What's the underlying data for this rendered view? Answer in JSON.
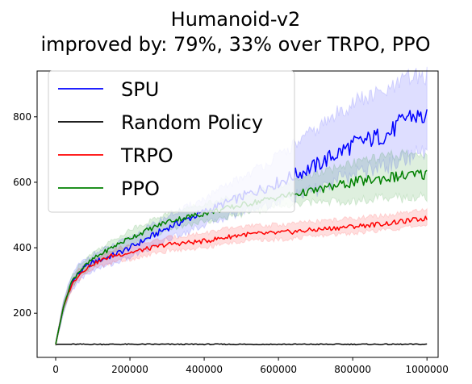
{
  "chart_data": {
    "type": "line",
    "title_lines": [
      "Humanoid-v2",
      "improved by: 79%, 33% over TRPO, PPO"
    ],
    "xlabel": "",
    "ylabel": "",
    "xlim": [
      -50000,
      1030000
    ],
    "ylim": [
      65,
      940
    ],
    "xticks": [
      0,
      200000,
      400000,
      600000,
      800000,
      1000000
    ],
    "xtick_labels": [
      "0",
      "200000",
      "400000",
      "600000",
      "800000",
      "1000000"
    ],
    "yticks": [
      200,
      400,
      600,
      800
    ],
    "ytick_labels": [
      "200",
      "400",
      "600",
      "800"
    ],
    "grid": false,
    "legend_position": "upper-left",
    "series": [
      {
        "name": "SPU",
        "color": "#0000ff",
        "x": [
          0,
          20000,
          40000,
          60000,
          80000,
          100000,
          150000,
          200000,
          300000,
          400000,
          500000,
          600000,
          700000,
          800000,
          900000,
          950000,
          1000000
        ],
        "y": [
          105,
          215,
          285,
          320,
          340,
          355,
          375,
          400,
          460,
          510,
          555,
          600,
          650,
          715,
          750,
          805,
          795
        ],
        "upper": [
          110,
          235,
          305,
          345,
          365,
          380,
          405,
          430,
          495,
          550,
          615,
          680,
          760,
          845,
          880,
          920,
          925
        ],
        "lower": [
          100,
          195,
          265,
          295,
          315,
          330,
          350,
          370,
          425,
          470,
          510,
          540,
          575,
          625,
          655,
          680,
          690
        ]
      },
      {
        "name": "Random Policy",
        "color": "#000000",
        "x": [
          0,
          100000,
          200000,
          300000,
          400000,
          500000,
          600000,
          700000,
          800000,
          900000,
          1000000
        ],
        "y": [
          105,
          105,
          105,
          105,
          105,
          105,
          105,
          105,
          105,
          105,
          105
        ]
      },
      {
        "name": "TRPO",
        "color": "#ff0000",
        "x": [
          0,
          20000,
          40000,
          60000,
          80000,
          100000,
          150000,
          200000,
          300000,
          400000,
          500000,
          600000,
          700000,
          800000,
          900000,
          1000000
        ],
        "y": [
          105,
          215,
          280,
          315,
          335,
          350,
          375,
          385,
          410,
          420,
          440,
          445,
          455,
          465,
          475,
          490
        ],
        "upper": [
          110,
          225,
          295,
          330,
          350,
          365,
          395,
          405,
          430,
          445,
          465,
          470,
          480,
          490,
          500,
          515
        ],
        "lower": [
          100,
          205,
          265,
          300,
          320,
          335,
          355,
          365,
          390,
          400,
          420,
          425,
          435,
          445,
          455,
          470
        ]
      },
      {
        "name": "PPO",
        "color": "#008000",
        "x": [
          0,
          20000,
          40000,
          60000,
          80000,
          100000,
          150000,
          200000,
          300000,
          400000,
          500000,
          600000,
          700000,
          800000,
          900000,
          1000000
        ],
        "y": [
          105,
          215,
          290,
          325,
          345,
          365,
          400,
          430,
          480,
          505,
          530,
          555,
          575,
          600,
          615,
          625
        ],
        "upper": [
          110,
          230,
          305,
          345,
          365,
          385,
          420,
          455,
          505,
          535,
          560,
          590,
          625,
          660,
          680,
          690
        ],
        "lower": [
          100,
          200,
          275,
          305,
          325,
          345,
          380,
          405,
          455,
          480,
          500,
          525,
          540,
          545,
          550,
          555
        ]
      }
    ]
  }
}
